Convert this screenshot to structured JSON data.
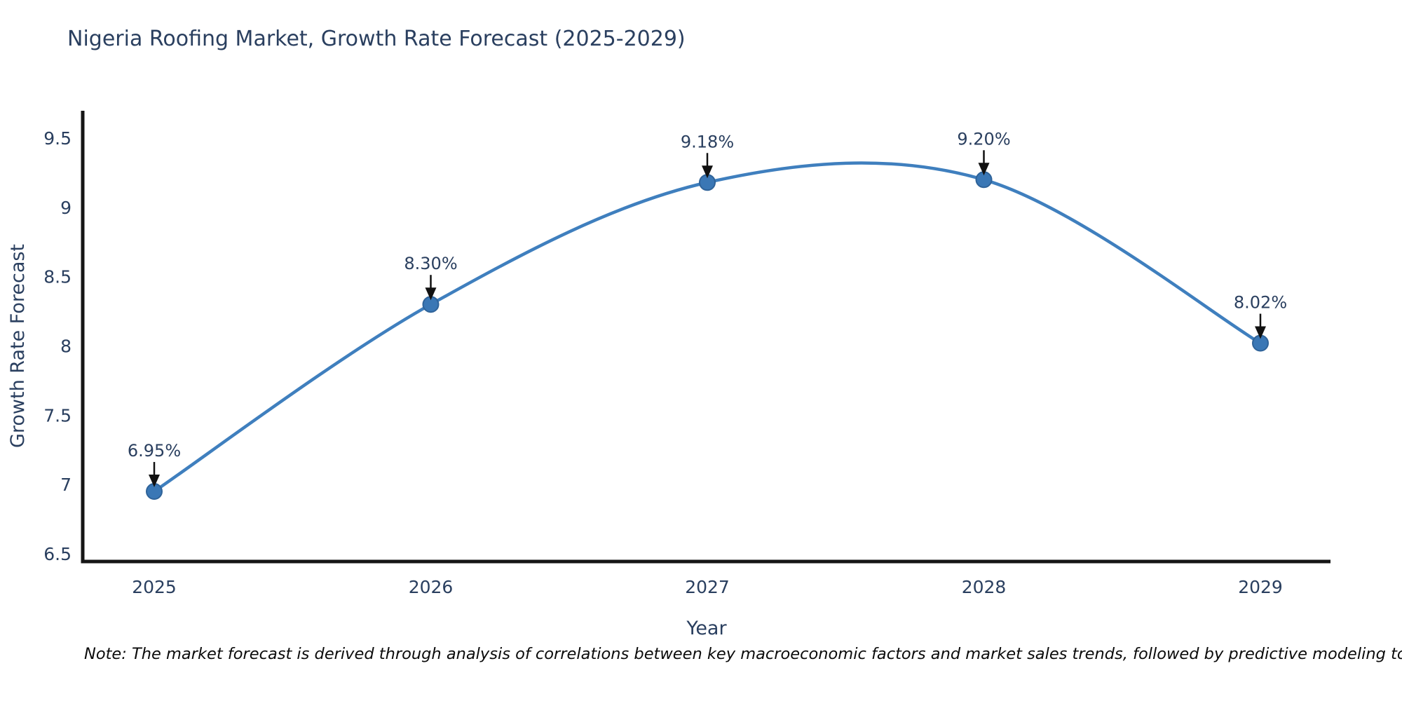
{
  "title": {
    "text": "Nigeria Roofing Market, Growth Rate Forecast (2025-2029)"
  },
  "note": {
    "text": "Note: The market forecast is derived through analysis of correlations between key macroeconomic factors and market sales trends, followed by predictive modeling to project future sales"
  },
  "chart_data": {
    "type": "line",
    "line_shape": "spline",
    "categories": [
      "2025",
      "2026",
      "2027",
      "2028",
      "2029"
    ],
    "series": [
      {
        "name": "Growth Rate Forecast",
        "values": [
          6.95,
          8.3,
          9.18,
          9.2,
          8.02
        ]
      }
    ],
    "point_labels": [
      "6.95%",
      "8.30%",
      "9.18%",
      "9.20%",
      "8.02%"
    ],
    "title": "Nigeria Roofing Market, Growth Rate Forecast (2025-2029)",
    "xlabel": "Year",
    "ylabel": "Growth Rate Forecast",
    "ylim": [
      6.5,
      9.5
    ],
    "yticks": [
      6.5,
      7,
      7.5,
      8,
      8.5,
      9,
      9.5
    ],
    "ytick_labels": [
      "6.5",
      "7",
      "7.5",
      "8",
      "8.5",
      "9",
      "9.5"
    ],
    "grid": false,
    "legend_position": "none",
    "colors": {
      "line": "#3f7fbe",
      "marker": "#3a77b5",
      "marker_edge": "#2f6399",
      "axis": "#161616",
      "tick_label": "#2a3f5f",
      "axis_title": "#2a3f5f",
      "annotation_text": "#2a3f5f",
      "arrow": "#111111",
      "title": "#2a3f5f"
    }
  }
}
